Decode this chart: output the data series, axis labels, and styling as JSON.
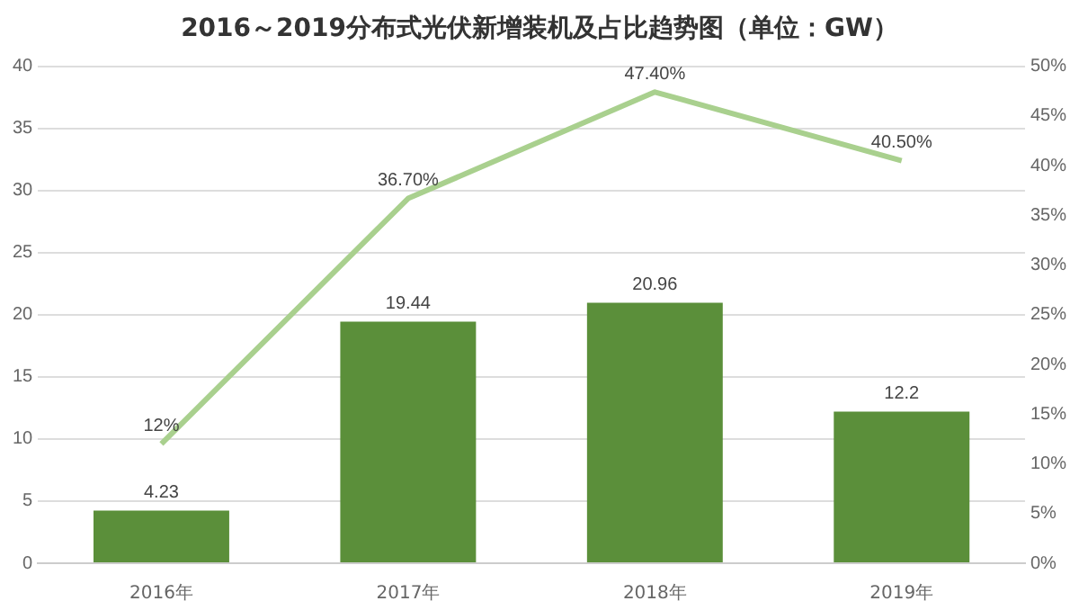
{
  "chart_data": {
    "type": "bar",
    "title": "2016～2019分布式光伏新增装机及占比趋势图（单位：GW）",
    "categories": [
      "2016年",
      "2017年",
      "2018年",
      "2019年"
    ],
    "series": [
      {
        "color": "#5b8f3a",
        "values": [
          4.23,
          19.44,
          20.96,
          12.2
        ],
        "value_labels": [
          "4.23",
          "19.44",
          "20.96",
          "12.2"
        ]
      },
      {
        "type": "line",
        "axis": "y2",
        "color": "#a9d08e",
        "values": [
          12,
          36.7,
          47.4,
          40.5
        ],
        "value_labels": [
          "12%",
          "36.70%",
          "47.40%",
          "40.50%"
        ]
      }
    ],
    "ylim": [
      0,
      40
    ],
    "yticks": [
      0,
      5,
      10,
      15,
      20,
      25,
      30,
      35,
      40
    ],
    "y2lim": [
      0,
      50
    ],
    "y2ticks": [
      {
        "value": 0,
        "label": "0%"
      },
      {
        "value": 5,
        "label": "5%"
      },
      {
        "value": 10,
        "label": "10%"
      },
      {
        "value": 15,
        "label": "15%"
      },
      {
        "value": 20,
        "label": "20%"
      },
      {
        "value": 25,
        "label": "25%"
      },
      {
        "value": 30,
        "label": "30%"
      },
      {
        "value": 35,
        "label": "35%"
      },
      {
        "value": 40,
        "label": "40%"
      },
      {
        "value": 45,
        "label": "45%"
      },
      {
        "value": 50,
        "label": "50%"
      }
    ],
    "grid": "y",
    "legend": false,
    "marker": "none"
  }
}
